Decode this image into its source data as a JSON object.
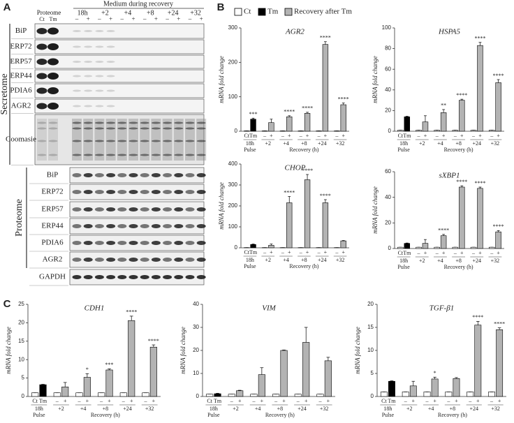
{
  "panels": {
    "a": "A",
    "b": "B",
    "c": "C"
  },
  "blot": {
    "header": "Medium during recovery",
    "proteome_label": "Proteome",
    "timepoints": [
      "18h",
      "+2",
      "+4",
      "+8",
      "+24",
      "+32"
    ],
    "lanes": [
      "Ct",
      "Tm"
    ],
    "signs": [
      "–",
      "+"
    ],
    "secretome": {
      "label": "Secretome",
      "rows": [
        "BiP",
        "ERP72",
        "ERP57",
        "ERP44",
        "PDIA6",
        "AGR2",
        "Coomasie"
      ]
    },
    "proteome": {
      "label": "Proteome",
      "rows": [
        "BiP",
        "ERP72",
        "ERP57",
        "ERP44",
        "PDIA6",
        "AGR2",
        "GAPDH"
      ]
    }
  },
  "legend": [
    {
      "name": "Ct",
      "color": "#ffffff"
    },
    {
      "name": "Tm",
      "color": "#000000"
    },
    {
      "name": "Recovery after Tm",
      "color": "#b3b3b3"
    }
  ],
  "bar_colors": [
    "#ffffff",
    "#000000",
    "#ffffff",
    "#b3b3b3",
    "#ffffff",
    "#b3b3b3",
    "#ffffff",
    "#b3b3b3",
    "#ffffff",
    "#b3b3b3",
    "#ffffff",
    "#b3b3b3"
  ],
  "chart_data": [
    {
      "type": "bar",
      "title": "AGR2",
      "ylabel": "mRNA fold change",
      "xlabel": "Recovery (h)",
      "categories": [
        "Ct",
        "Tm",
        "–",
        "+",
        "–",
        "+",
        "–",
        "+",
        "–",
        "+",
        "–",
        "+"
      ],
      "groups": [
        "18h",
        "+2",
        "+4",
        "+8",
        "+24",
        "+32"
      ],
      "group_sub": "Pulse",
      "values": [
        1,
        35,
        1,
        25,
        1,
        42,
        1,
        52,
        1,
        252,
        1,
        77
      ],
      "errors": [
        0,
        3,
        0,
        10,
        0,
        3,
        0,
        3,
        0,
        8,
        0,
        5
      ],
      "significance": [
        null,
        "***",
        null,
        null,
        null,
        "****",
        null,
        "****",
        null,
        "****",
        null,
        "****"
      ],
      "ylim": [
        0,
        300
      ],
      "yticks": [
        0,
        100,
        200,
        300
      ]
    },
    {
      "type": "bar",
      "title": "HSPA5",
      "ylabel": "mRNA fold change",
      "xlabel": "Recovery (h)",
      "categories": [
        "Ct",
        "Tm",
        "–",
        "+",
        "–",
        "+",
        "–",
        "+",
        "–",
        "+",
        "–",
        "+"
      ],
      "groups": [
        "18h",
        "+2",
        "+4",
        "+8",
        "+24",
        "+32"
      ],
      "group_sub": "Pulse",
      "values": [
        1,
        14,
        1,
        9,
        1,
        18,
        1,
        30,
        1,
        83,
        1,
        47
      ],
      "errors": [
        0,
        0.5,
        0,
        6,
        0,
        3,
        0,
        1,
        0,
        3,
        0,
        3
      ],
      "significance": [
        null,
        null,
        null,
        null,
        null,
        "**",
        null,
        "****",
        null,
        "****",
        null,
        "****"
      ],
      "ylim": [
        0,
        100
      ],
      "yticks": [
        0,
        20,
        40,
        60,
        80,
        100
      ]
    },
    {
      "type": "bar",
      "title": "CHOP",
      "ylabel": "mRNA fold change",
      "xlabel": "Recovery (h)",
      "categories": [
        "Ct",
        "Tm",
        "–",
        "+",
        "–",
        "+",
        "–",
        "+",
        "–",
        "+",
        "–",
        "+"
      ],
      "groups": [
        "18h",
        "+2",
        "+4",
        "+8",
        "+24",
        "+32"
      ],
      "group_sub": "Pulse",
      "values": [
        1,
        16,
        1,
        12,
        1,
        215,
        1,
        325,
        1,
        215,
        1,
        33
      ],
      "errors": [
        0,
        2,
        0,
        6,
        0,
        30,
        0,
        25,
        0,
        15,
        0,
        2
      ],
      "significance": [
        null,
        null,
        null,
        null,
        null,
        "****",
        null,
        "****",
        null,
        "****",
        null,
        null
      ],
      "ylim": [
        0,
        400
      ],
      "yticks": [
        0,
        100,
        200,
        300,
        400
      ]
    },
    {
      "type": "bar",
      "title": "sXBP1",
      "ylabel": "mRNA fold change",
      "xlabel": "Recovery (h)",
      "categories": [
        "Ct",
        "Tm",
        "–",
        "+",
        "–",
        "+",
        "–",
        "+",
        "–",
        "+",
        "–",
        "+"
      ],
      "groups": [
        "18h",
        "+2",
        "+4",
        "+8",
        "+24",
        "+32"
      ],
      "group_sub": "Pulse",
      "values": [
        1,
        4,
        1,
        4,
        1,
        10,
        1,
        48,
        1,
        47,
        1,
        13
      ],
      "errors": [
        0,
        0.3,
        0,
        3,
        0,
        1,
        0,
        1,
        0,
        1,
        0,
        1
      ],
      "significance": [
        null,
        null,
        null,
        null,
        null,
        "****",
        null,
        "****",
        null,
        "****",
        null,
        "****"
      ],
      "ylim": [
        0,
        60
      ],
      "yticks": [
        0,
        20,
        40,
        60
      ]
    },
    {
      "type": "bar",
      "title": "CDH1",
      "ylabel": "mRNA fold change",
      "xlabel": "Recovery (h)",
      "categories": [
        "Ct",
        "Tm",
        "–",
        "+",
        "–",
        "+",
        "–",
        "+",
        "–",
        "+",
        "–",
        "+"
      ],
      "groups": [
        "18h",
        "+2",
        "+4",
        "+8",
        "+24",
        "+32"
      ],
      "group_sub": "Pulse",
      "values": [
        1,
        3.2,
        1,
        2.6,
        1,
        5.2,
        1,
        7.2,
        1,
        20.6,
        1,
        13.4
      ],
      "errors": [
        0,
        0.1,
        0,
        1.2,
        0,
        1,
        0,
        0.3,
        0,
        1.2,
        0,
        0.6
      ],
      "significance": [
        null,
        null,
        null,
        null,
        null,
        "*",
        null,
        "***",
        null,
        "****",
        null,
        "****"
      ],
      "ylim": [
        0,
        25
      ],
      "yticks": [
        0,
        5,
        10,
        15,
        20,
        25
      ]
    },
    {
      "type": "bar",
      "title": "VIM",
      "ylabel": "mRNA fold change",
      "xlabel": "Recovery (h)",
      "categories": [
        "Ct",
        "Tm",
        "–",
        "+",
        "–",
        "+",
        "–",
        "+",
        "–",
        "+",
        "–",
        "+"
      ],
      "groups": [
        "18h",
        "+2",
        "+4",
        "+8",
        "+24",
        "+32"
      ],
      "group_sub": "Pulse",
      "values": [
        1,
        1.2,
        1,
        2.5,
        1,
        9.5,
        1,
        20,
        1,
        23.5,
        1,
        15.5
      ],
      "errors": [
        0,
        0.2,
        0,
        0.2,
        0,
        3,
        0,
        0.2,
        0,
        6.5,
        0,
        1.5
      ],
      "significance": [
        null,
        null,
        null,
        null,
        null,
        null,
        null,
        null,
        null,
        null,
        null,
        null
      ],
      "ylim": [
        0,
        40
      ],
      "yticks": [
        0,
        10,
        20,
        30,
        40
      ]
    },
    {
      "type": "bar",
      "title": "TGF-β1",
      "ylabel": "mRNA fold change",
      "xlabel": "Recovery (h)",
      "categories": [
        "Ct",
        "Tm",
        "–",
        "+",
        "–",
        "+",
        "–",
        "+",
        "–",
        "+",
        "–",
        "+"
      ],
      "groups": [
        "18h",
        "+2",
        "+4",
        "+8",
        "+24",
        "+32"
      ],
      "group_sub": "Pulse",
      "values": [
        1,
        3.3,
        1,
        2.3,
        1,
        3.8,
        1,
        3.9,
        1,
        15.5,
        1,
        14.5
      ],
      "errors": [
        0,
        0.1,
        0,
        1,
        0,
        0.4,
        0,
        0.2,
        0,
        0.8,
        0,
        0.4
      ],
      "significance": [
        null,
        null,
        null,
        null,
        null,
        "*",
        null,
        null,
        null,
        "****",
        null,
        "****"
      ],
      "ylim": [
        0,
        20
      ],
      "yticks": [
        0,
        5,
        10,
        15,
        20
      ]
    }
  ]
}
